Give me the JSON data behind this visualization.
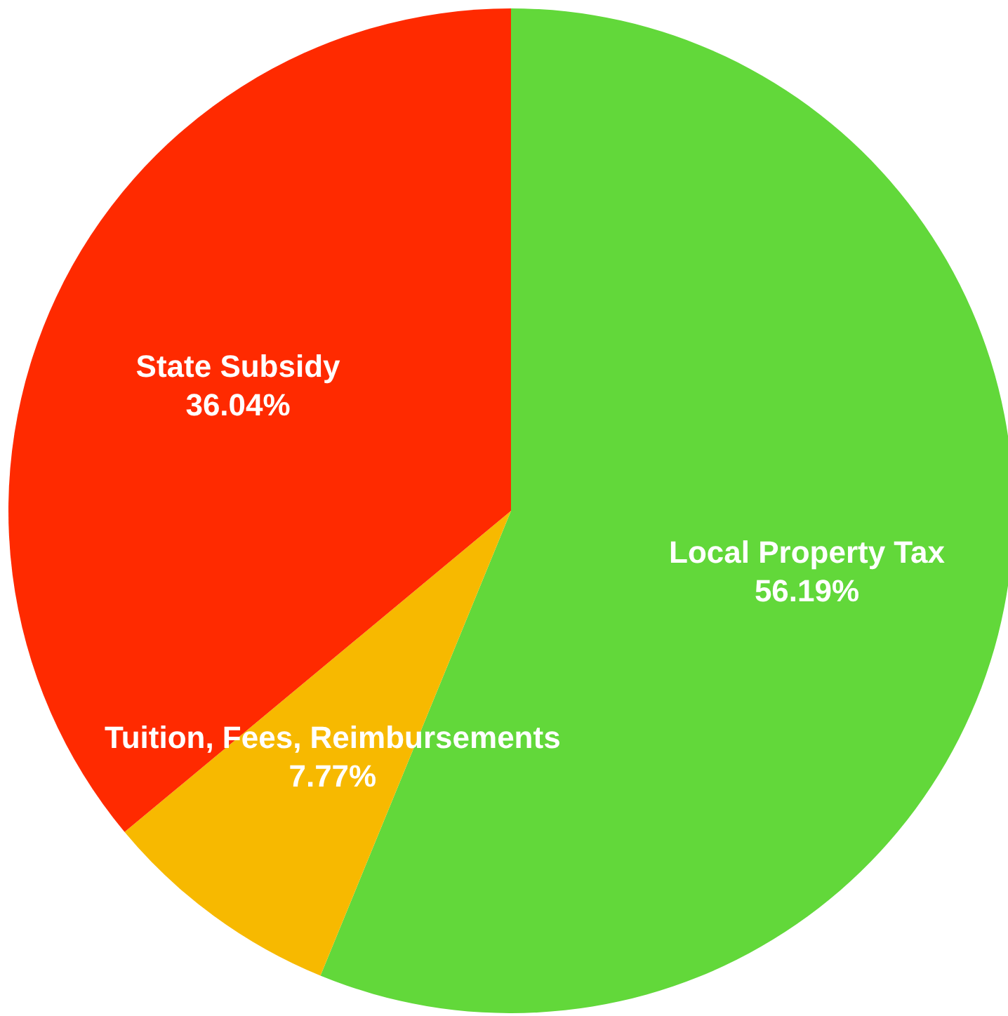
{
  "chart_data": {
    "type": "pie",
    "categories": [
      "Local Property Tax",
      "Tuition, Fees, Reimbursements",
      "State Subsidy"
    ],
    "values": [
      56.19,
      7.77,
      36.04
    ],
    "value_labels": [
      "56.19%",
      "7.77%",
      "36.04%"
    ],
    "colors": [
      "#62d83a",
      "#f7b900",
      "#ff2a00"
    ],
    "legend": false
  }
}
